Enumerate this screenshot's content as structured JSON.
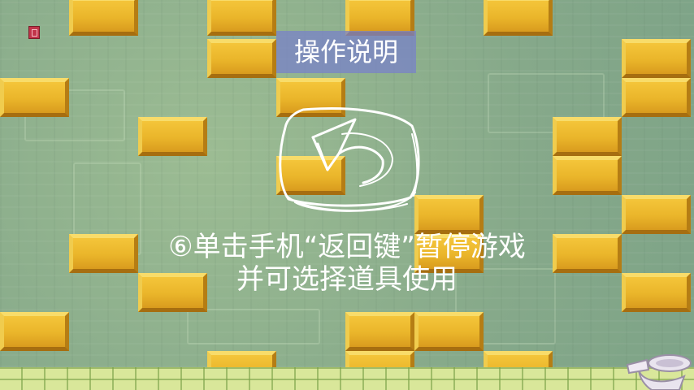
{
  "title": "操作说明",
  "instructions": {
    "line1": "⑥单击手机“返回键”暂停游戏",
    "line2": "并可选择道具使用"
  },
  "icons": {
    "corner": "gift-icon",
    "center": "back-key-icon",
    "decor": "toilet-icon"
  },
  "colors": {
    "background": "#8fb08a",
    "brick": "#eab52a",
    "title_box": "#7882c8",
    "text": "#ffffff"
  }
}
